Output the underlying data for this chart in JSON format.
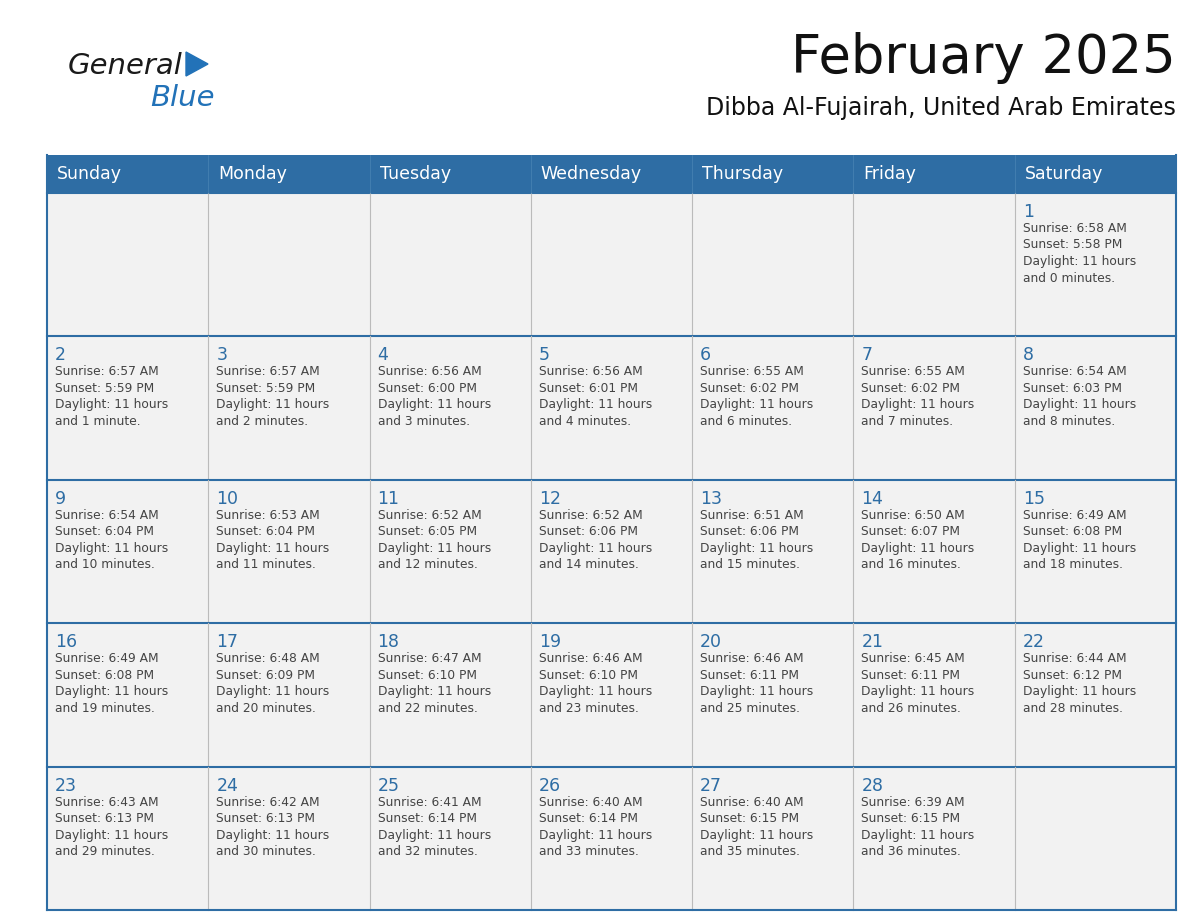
{
  "title": "February 2025",
  "subtitle": "Dibba Al-Fujairah, United Arab Emirates",
  "days_of_week": [
    "Sunday",
    "Monday",
    "Tuesday",
    "Wednesday",
    "Thursday",
    "Friday",
    "Saturday"
  ],
  "header_bg": "#2E6DA4",
  "header_text": "#FFFFFF",
  "cell_bg": "#F2F2F2",
  "line_color": "#2E6DA4",
  "day_num_color": "#2E6DA4",
  "text_color": "#444444",
  "calendar_data": [
    [
      null,
      null,
      null,
      null,
      null,
      null,
      {
        "day": 1,
        "sunrise": "6:58 AM",
        "sunset": "5:58 PM",
        "daylight_l1": "Daylight: 11 hours",
        "daylight_l2": "and 0 minutes."
      }
    ],
    [
      {
        "day": 2,
        "sunrise": "6:57 AM",
        "sunset": "5:59 PM",
        "daylight_l1": "Daylight: 11 hours",
        "daylight_l2": "and 1 minute."
      },
      {
        "day": 3,
        "sunrise": "6:57 AM",
        "sunset": "5:59 PM",
        "daylight_l1": "Daylight: 11 hours",
        "daylight_l2": "and 2 minutes."
      },
      {
        "day": 4,
        "sunrise": "6:56 AM",
        "sunset": "6:00 PM",
        "daylight_l1": "Daylight: 11 hours",
        "daylight_l2": "and 3 minutes."
      },
      {
        "day": 5,
        "sunrise": "6:56 AM",
        "sunset": "6:01 PM",
        "daylight_l1": "Daylight: 11 hours",
        "daylight_l2": "and 4 minutes."
      },
      {
        "day": 6,
        "sunrise": "6:55 AM",
        "sunset": "6:02 PM",
        "daylight_l1": "Daylight: 11 hours",
        "daylight_l2": "and 6 minutes."
      },
      {
        "day": 7,
        "sunrise": "6:55 AM",
        "sunset": "6:02 PM",
        "daylight_l1": "Daylight: 11 hours",
        "daylight_l2": "and 7 minutes."
      },
      {
        "day": 8,
        "sunrise": "6:54 AM",
        "sunset": "6:03 PM",
        "daylight_l1": "Daylight: 11 hours",
        "daylight_l2": "and 8 minutes."
      }
    ],
    [
      {
        "day": 9,
        "sunrise": "6:54 AM",
        "sunset": "6:04 PM",
        "daylight_l1": "Daylight: 11 hours",
        "daylight_l2": "and 10 minutes."
      },
      {
        "day": 10,
        "sunrise": "6:53 AM",
        "sunset": "6:04 PM",
        "daylight_l1": "Daylight: 11 hours",
        "daylight_l2": "and 11 minutes."
      },
      {
        "day": 11,
        "sunrise": "6:52 AM",
        "sunset": "6:05 PM",
        "daylight_l1": "Daylight: 11 hours",
        "daylight_l2": "and 12 minutes."
      },
      {
        "day": 12,
        "sunrise": "6:52 AM",
        "sunset": "6:06 PM",
        "daylight_l1": "Daylight: 11 hours",
        "daylight_l2": "and 14 minutes."
      },
      {
        "day": 13,
        "sunrise": "6:51 AM",
        "sunset": "6:06 PM",
        "daylight_l1": "Daylight: 11 hours",
        "daylight_l2": "and 15 minutes."
      },
      {
        "day": 14,
        "sunrise": "6:50 AM",
        "sunset": "6:07 PM",
        "daylight_l1": "Daylight: 11 hours",
        "daylight_l2": "and 16 minutes."
      },
      {
        "day": 15,
        "sunrise": "6:49 AM",
        "sunset": "6:08 PM",
        "daylight_l1": "Daylight: 11 hours",
        "daylight_l2": "and 18 minutes."
      }
    ],
    [
      {
        "day": 16,
        "sunrise": "6:49 AM",
        "sunset": "6:08 PM",
        "daylight_l1": "Daylight: 11 hours",
        "daylight_l2": "and 19 minutes."
      },
      {
        "day": 17,
        "sunrise": "6:48 AM",
        "sunset": "6:09 PM",
        "daylight_l1": "Daylight: 11 hours",
        "daylight_l2": "and 20 minutes."
      },
      {
        "day": 18,
        "sunrise": "6:47 AM",
        "sunset": "6:10 PM",
        "daylight_l1": "Daylight: 11 hours",
        "daylight_l2": "and 22 minutes."
      },
      {
        "day": 19,
        "sunrise": "6:46 AM",
        "sunset": "6:10 PM",
        "daylight_l1": "Daylight: 11 hours",
        "daylight_l2": "and 23 minutes."
      },
      {
        "day": 20,
        "sunrise": "6:46 AM",
        "sunset": "6:11 PM",
        "daylight_l1": "Daylight: 11 hours",
        "daylight_l2": "and 25 minutes."
      },
      {
        "day": 21,
        "sunrise": "6:45 AM",
        "sunset": "6:11 PM",
        "daylight_l1": "Daylight: 11 hours",
        "daylight_l2": "and 26 minutes."
      },
      {
        "day": 22,
        "sunrise": "6:44 AM",
        "sunset": "6:12 PM",
        "daylight_l1": "Daylight: 11 hours",
        "daylight_l2": "and 28 minutes."
      }
    ],
    [
      {
        "day": 23,
        "sunrise": "6:43 AM",
        "sunset": "6:13 PM",
        "daylight_l1": "Daylight: 11 hours",
        "daylight_l2": "and 29 minutes."
      },
      {
        "day": 24,
        "sunrise": "6:42 AM",
        "sunset": "6:13 PM",
        "daylight_l1": "Daylight: 11 hours",
        "daylight_l2": "and 30 minutes."
      },
      {
        "day": 25,
        "sunrise": "6:41 AM",
        "sunset": "6:14 PM",
        "daylight_l1": "Daylight: 11 hours",
        "daylight_l2": "and 32 minutes."
      },
      {
        "day": 26,
        "sunrise": "6:40 AM",
        "sunset": "6:14 PM",
        "daylight_l1": "Daylight: 11 hours",
        "daylight_l2": "and 33 minutes."
      },
      {
        "day": 27,
        "sunrise": "6:40 AM",
        "sunset": "6:15 PM",
        "daylight_l1": "Daylight: 11 hours",
        "daylight_l2": "and 35 minutes."
      },
      {
        "day": 28,
        "sunrise": "6:39 AM",
        "sunset": "6:15 PM",
        "daylight_l1": "Daylight: 11 hours",
        "daylight_l2": "and 36 minutes."
      },
      null
    ]
  ],
  "logo_color_general": "#1a1a1a",
  "logo_color_blue": "#2272B8",
  "logo_triangle_color": "#2272B8"
}
